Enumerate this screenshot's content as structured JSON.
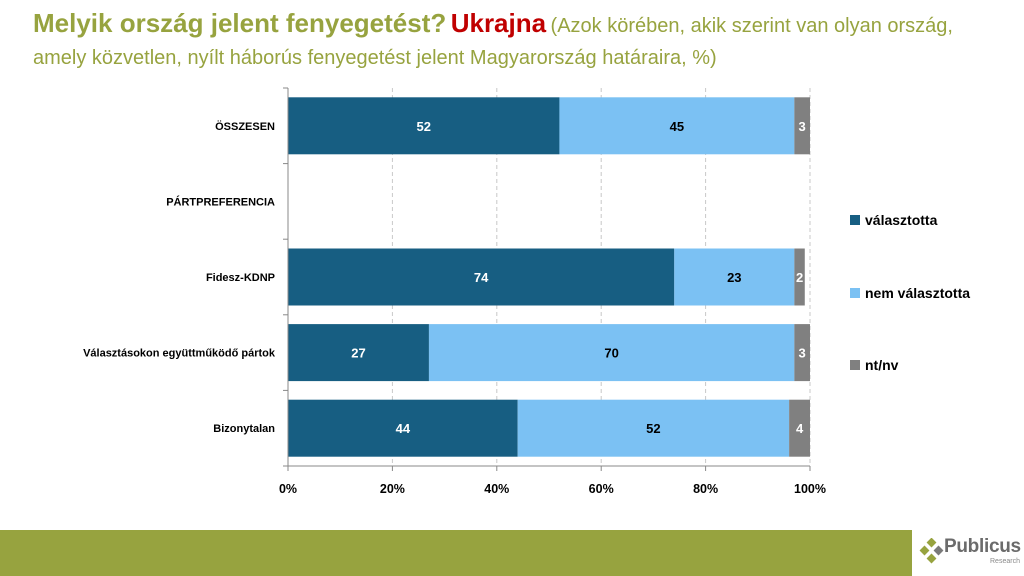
{
  "header": {
    "question": "Melyik ország jelent fenyegetést?",
    "highlight": "Ukrajna",
    "subtitle": "(Azok körében, akik szerint van olyan ország, amely közvetlen, nyílt háborús fenyegetést jelent Magyarország határaira, %)"
  },
  "colors": {
    "title": "#97a33f",
    "highlight": "#c00000",
    "chosen": "#175e82",
    "not_chosen": "#7bc1f3",
    "dk": "#808080",
    "footer": "#97a33f"
  },
  "chart_data": {
    "type": "bar",
    "orientation": "horizontal",
    "stacked": "percent",
    "categories": [
      "ÖSSZESEN",
      "PÁRTPREFERENCIA",
      "Fidesz-KDNP",
      "Választásokon együttműködő pártok",
      "Bizonytalan"
    ],
    "series": [
      {
        "name": "választotta",
        "values": [
          52,
          null,
          74,
          27,
          44
        ]
      },
      {
        "name": "nem választotta",
        "values": [
          45,
          null,
          23,
          70,
          52
        ]
      },
      {
        "name": "nt/nv",
        "values": [
          3,
          null,
          2,
          3,
          4
        ]
      }
    ],
    "x_ticks": [
      "0%",
      "20%",
      "40%",
      "60%",
      "80%",
      "100%"
    ],
    "xlim": [
      0,
      100
    ],
    "grid": "vertical dashed",
    "legend_position": "right"
  },
  "legend": {
    "items": [
      {
        "label": "választotta"
      },
      {
        "label": "nem választotta"
      },
      {
        "label": "nt/nv"
      }
    ]
  },
  "footer": {
    "logo_name": "Publicus",
    "logo_sub": "Research"
  }
}
